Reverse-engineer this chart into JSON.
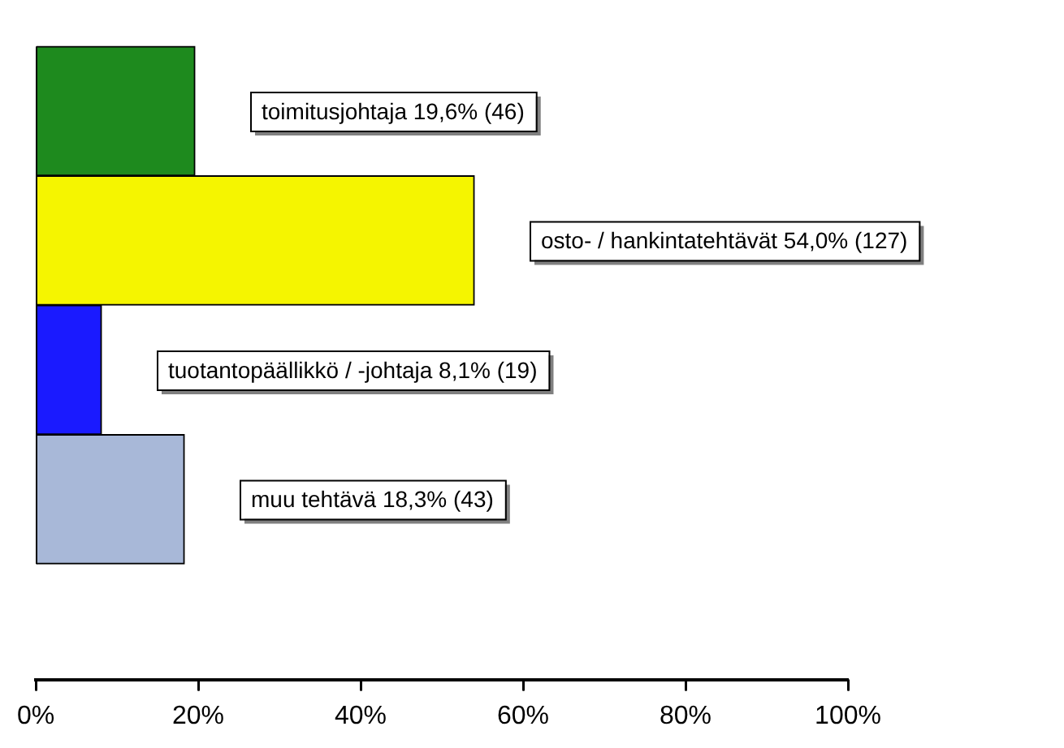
{
  "chart_data": {
    "type": "bar",
    "orientation": "horizontal",
    "categories": [
      null,
      null,
      null,
      null
    ],
    "values": [
      19.6,
      54.0,
      8.1,
      18.3
    ],
    "colors": [
      "#1e8a1e",
      "#f5f500",
      "#1a1aff",
      "#a8b8d8"
    ],
    "value_labels": [
      "toimitusjohtaja 19,6% (46)",
      "osto- / hankintatehtävät 54,0% (127)",
      "tuotantopäällikkö / -johtaja 8,1% (19)",
      "muu tehtävä 18,3% (43)"
    ],
    "xlim": [
      0,
      100
    ],
    "xticks": [
      {
        "value": 0,
        "label": "0%"
      },
      {
        "value": 20,
        "label": "20%"
      },
      {
        "value": 40,
        "label": "40%"
      },
      {
        "value": 60,
        "label": "60%"
      },
      {
        "value": 80,
        "label": "80%"
      },
      {
        "value": 100,
        "label": "100%"
      }
    ],
    "tick_labels": "x"
  }
}
